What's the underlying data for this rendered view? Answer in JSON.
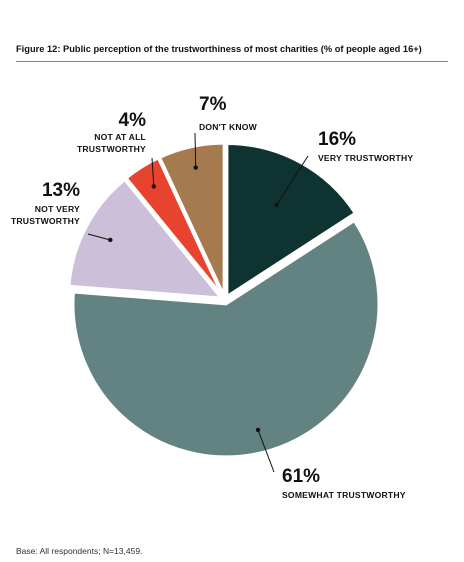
{
  "figure": {
    "title": "Figure 12: Public perception of the trustworthiness of most charities (% of people aged 16+)",
    "base_note": "Base: All respondents; N=13,459."
  },
  "chart_data": {
    "type": "pie",
    "title": "Figure 12: Public perception of the trustworthiness of most charities (% of people aged 16+)",
    "slices": [
      {
        "label": "VERY TRUSTWORTHY",
        "value": 16,
        "value_label": "16%",
        "color": "#0e3330"
      },
      {
        "label": "SOMEWHAT TRUSTWORTHY",
        "value": 61,
        "value_label": "61%",
        "color": "#628382"
      },
      {
        "label": "NOT VERY TRUSTWORTHY",
        "value": 13,
        "value_label": "13%",
        "color": "#cbbfda"
      },
      {
        "label": "NOT AT ALL TRUSTWORTHY",
        "value": 4,
        "value_label": "4%",
        "color": "#e8432e"
      },
      {
        "label": "DON'T KNOW",
        "value": 7,
        "value_label": "7%",
        "color": "#a67a4f"
      }
    ],
    "legend": "none"
  }
}
